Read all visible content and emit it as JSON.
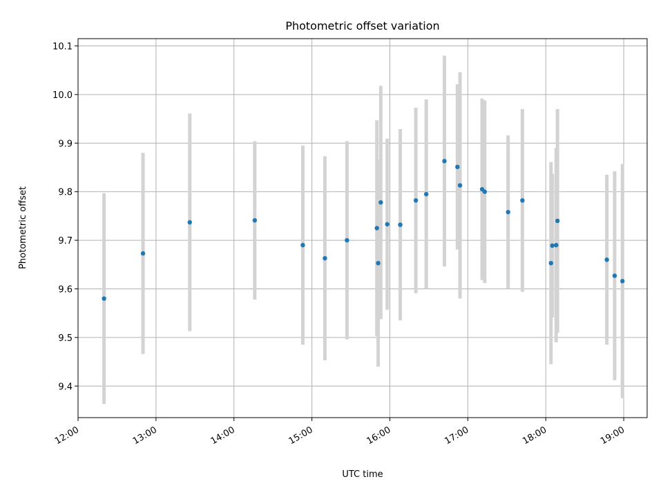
{
  "colors": {
    "point": "#1f77b4",
    "errorbar": "#d3d3d3",
    "grid": "#b0b0b0"
  },
  "chart_data": {
    "type": "scatter",
    "title": "Photometric offset variation",
    "xlabel": "UTC time",
    "ylabel": "Photometric offset",
    "x_tick_labels": [
      "12:00",
      "13:00",
      "14:00",
      "15:00",
      "16:00",
      "17:00",
      "18:00",
      "19:00"
    ],
    "y_tick_labels": [
      "9.4",
      "9.5",
      "9.6",
      "9.7",
      "9.8",
      "9.9",
      "10.0",
      "10.1"
    ],
    "xlim": [
      "12:00",
      "19:18"
    ],
    "ylim": [
      9.335,
      10.115
    ],
    "grid": true,
    "error_bars": true,
    "series": [
      {
        "points": [
          {
            "x": "12:20",
            "y": 9.58,
            "err": 0.217
          },
          {
            "x": "12:50",
            "y": 9.673,
            "err": 0.207
          },
          {
            "x": "13:26",
            "y": 9.737,
            "err": 0.224
          },
          {
            "x": "14:16",
            "y": 9.741,
            "err": 0.163
          },
          {
            "x": "14:53",
            "y": 9.69,
            "err": 0.205
          },
          {
            "x": "15:10",
            "y": 9.663,
            "err": 0.21
          },
          {
            "x": "15:27",
            "y": 9.7,
            "err": 0.204
          },
          {
            "x": "15:50",
            "y": 9.725,
            "err": 0.222
          },
          {
            "x": "15:51",
            "y": 9.653,
            "err": 0.213
          },
          {
            "x": "15:53",
            "y": 9.778,
            "err": 0.24
          },
          {
            "x": "15:58",
            "y": 9.733,
            "err": 0.176
          },
          {
            "x": "16:08",
            "y": 9.732,
            "err": 0.197
          },
          {
            "x": "16:20",
            "y": 9.782,
            "err": 0.191
          },
          {
            "x": "16:28",
            "y": 9.795,
            "err": 0.195
          },
          {
            "x": "16:42",
            "y": 9.863,
            "err": 0.217
          },
          {
            "x": "16:52",
            "y": 9.851,
            "err": 0.17
          },
          {
            "x": "16:54",
            "y": 9.813,
            "err": 0.233
          },
          {
            "x": "17:11",
            "y": 9.805,
            "err": 0.187
          },
          {
            "x": "17:13",
            "y": 9.8,
            "err": 0.188
          },
          {
            "x": "17:31",
            "y": 9.758,
            "err": 0.158
          },
          {
            "x": "17:42",
            "y": 9.782,
            "err": 0.188
          },
          {
            "x": "18:04",
            "y": 9.653,
            "err": 0.208
          },
          {
            "x": "18:05",
            "y": 9.689,
            "err": 0.148
          },
          {
            "x": "18:08",
            "y": 9.69,
            "err": 0.2
          },
          {
            "x": "18:09",
            "y": 9.74,
            "err": 0.23
          },
          {
            "x": "18:47",
            "y": 9.66,
            "err": 0.175
          },
          {
            "x": "18:53",
            "y": 9.627,
            "err": 0.215
          },
          {
            "x": "18:59",
            "y": 9.616,
            "err": 0.241
          }
        ]
      }
    ]
  }
}
